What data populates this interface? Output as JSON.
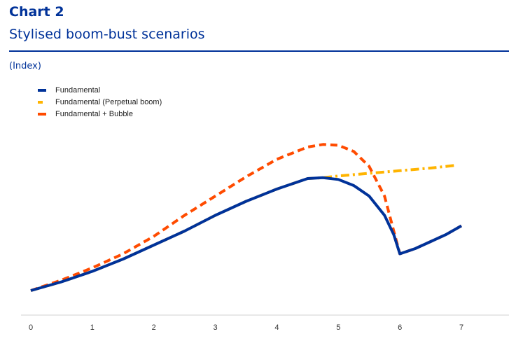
{
  "header": {
    "chart_number": "Chart 2",
    "title": "Stylised boom-bust scenarios",
    "unit": "(Index)"
  },
  "colors": {
    "brand": "#003299",
    "fundamental": "#003299",
    "perpetual_boom": "#FFB400",
    "bubble": "#FF4B00"
  },
  "chart_data": {
    "type": "line",
    "title": "Stylised boom-bust scenarios",
    "xlabel": "",
    "ylabel": "(Index)",
    "xlim": [
      0,
      7.7
    ],
    "ylim": [
      0,
      10
    ],
    "xticks": [
      0,
      1,
      2,
      3,
      4,
      5,
      6,
      7
    ],
    "tick_labels": [
      "0",
      "1",
      "2",
      "3",
      "4",
      "5",
      "6",
      "7"
    ],
    "grid": false,
    "legend_position": "top-left",
    "series": [
      {
        "name": "Fundamental",
        "color": "#003299",
        "style": "solid",
        "x": [
          0,
          0.5,
          1,
          1.5,
          2,
          2.5,
          3,
          3.5,
          4,
          4.5,
          4.75,
          5,
          5.25,
          5.5,
          5.75,
          5.9,
          6.0,
          6.25,
          6.5,
          6.75,
          7.0
        ],
        "y": [
          1.4,
          1.9,
          2.5,
          3.2,
          4.0,
          4.8,
          5.7,
          6.5,
          7.2,
          7.8,
          7.85,
          7.75,
          7.4,
          6.8,
          5.7,
          4.6,
          3.5,
          3.8,
          4.2,
          4.6,
          5.1
        ]
      },
      {
        "name": "Fundamental (Perpetual boom)",
        "color": "#FFB400",
        "style": "dashdot",
        "x": [
          0,
          0.5,
          1,
          1.5,
          2,
          2.5,
          3,
          3.5,
          4,
          4.5,
          4.75,
          5,
          5.5,
          6,
          6.5,
          6.9
        ],
        "y": [
          1.4,
          1.9,
          2.5,
          3.2,
          4.0,
          4.8,
          5.7,
          6.5,
          7.2,
          7.8,
          7.85,
          7.95,
          8.1,
          8.25,
          8.4,
          8.55
        ]
      },
      {
        "name": "Fundamental + Bubble",
        "color": "#FF4B00",
        "style": "dashed",
        "x": [
          0,
          0.5,
          1,
          1.5,
          2,
          2.5,
          3,
          3.5,
          4,
          4.5,
          4.75,
          5,
          5.25,
          5.5,
          5.75,
          5.9,
          6.0,
          6.25,
          6.5,
          6.75,
          7.0
        ],
        "y": [
          1.4,
          2.0,
          2.7,
          3.5,
          4.5,
          5.7,
          6.8,
          7.9,
          8.9,
          9.6,
          9.75,
          9.7,
          9.35,
          8.5,
          6.8,
          4.8,
          3.5,
          3.8,
          4.2,
          4.6,
          5.1
        ]
      }
    ]
  }
}
